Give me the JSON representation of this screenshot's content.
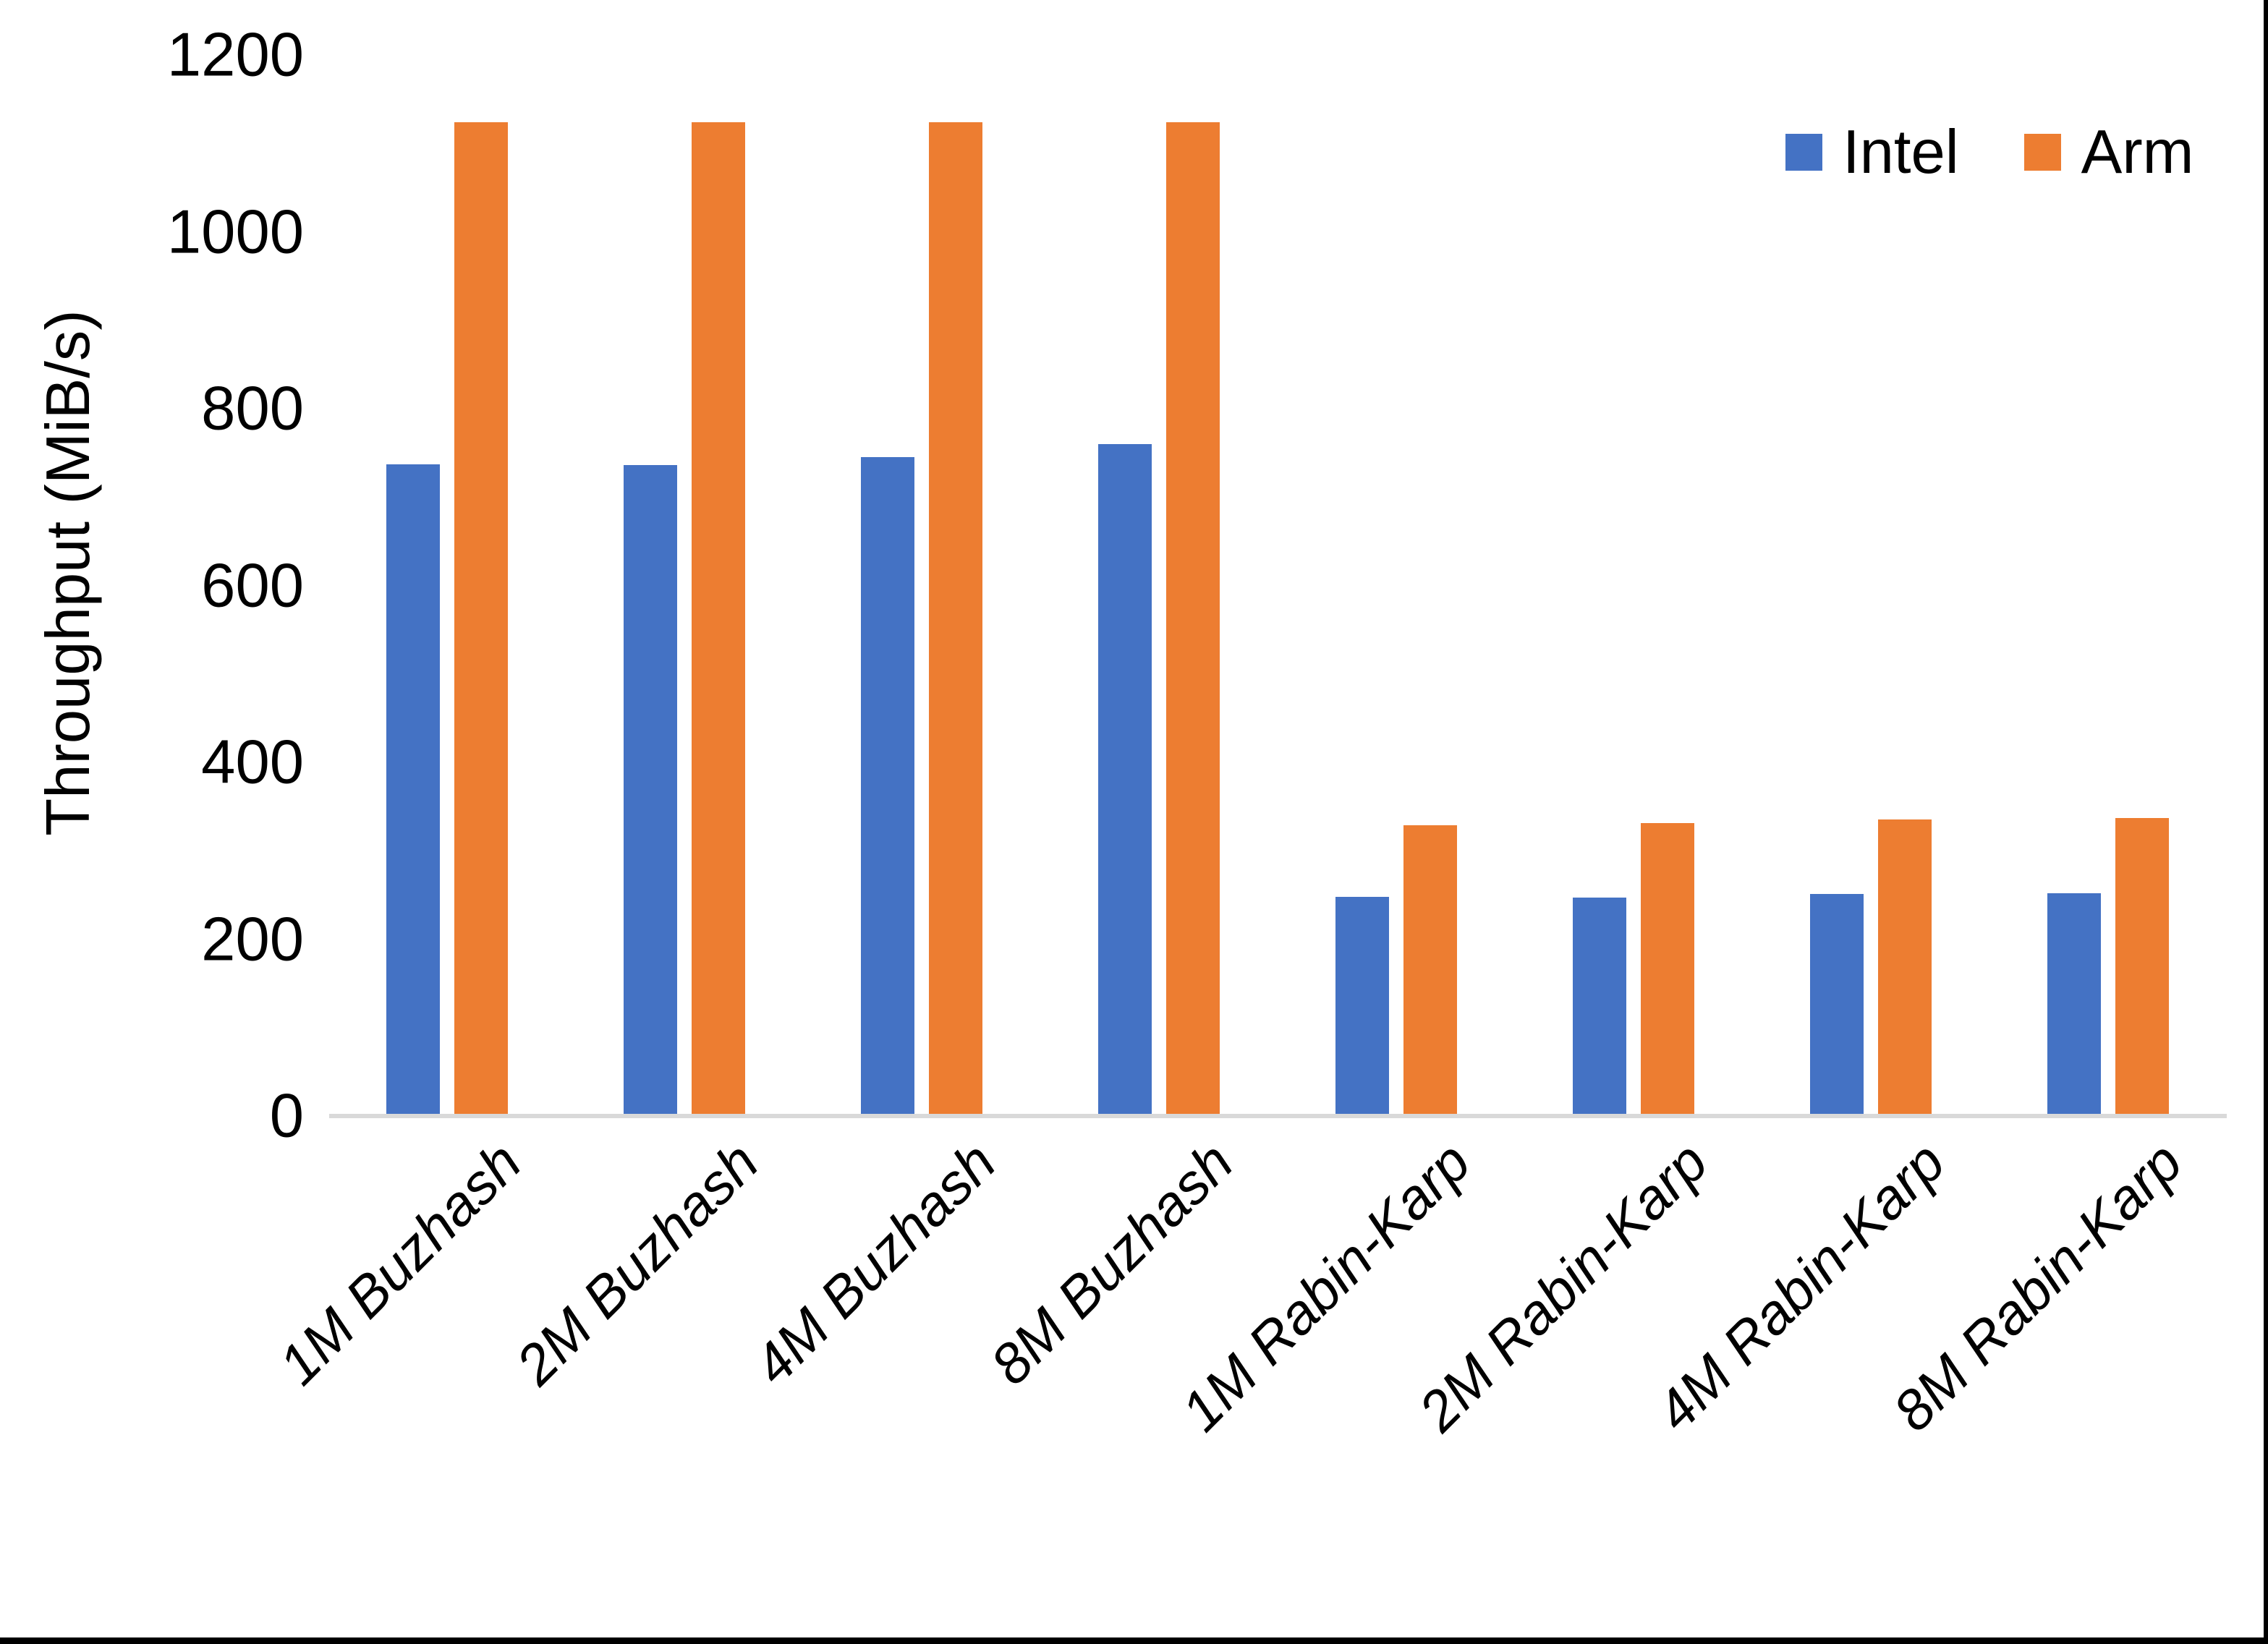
{
  "chart_data": {
    "type": "bar",
    "title": "",
    "xlabel": "",
    "ylabel": "Throughput (MiB/s)",
    "categories": [
      "1M Buzhash",
      "2M Buzhash",
      "4M Buzhash",
      "8M Buzhash",
      "1M Rabin-Karp",
      "2M Rabin-Karp",
      "4M Rabin-Karp",
      "8M Rabin-Karp"
    ],
    "series": [
      {
        "name": "Intel",
        "color": "#4472C4",
        "values": [
          737,
          736,
          745,
          760,
          248,
          247,
          251,
          252
        ]
      },
      {
        "name": "Arm",
        "color": "#ED7D31",
        "values": [
          1124,
          1124,
          1124,
          1124,
          329,
          331,
          335,
          337
        ]
      }
    ],
    "y_axis": {
      "min": 0,
      "max": 1200,
      "tick_step": 200,
      "ticks": [
        1200,
        1000,
        800,
        600,
        400,
        200,
        0
      ]
    },
    "grid": false,
    "legend_position": "top-right",
    "axis_line_color": "#D9D9D9",
    "background_color": "#FFFFFF",
    "border_color": "#000000"
  }
}
